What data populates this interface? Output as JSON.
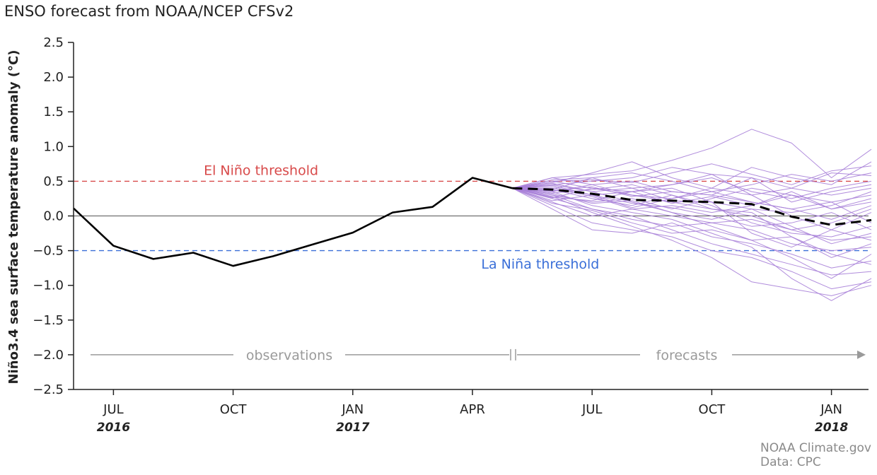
{
  "title": "ENSO forecast from NOAA/NCEP CFSv2",
  "credit": {
    "line1": "NOAA Climate.gov",
    "line2": "Data: CPC"
  },
  "colors": {
    "observed": "#000000",
    "members": "#a77fd8",
    "el_nino": "#d84a4a",
    "la_nina": "#3a6fd8",
    "zero": "#555555",
    "period": "#9a9a9a"
  },
  "chart_data": {
    "type": "line",
    "title": "ENSO forecast from NOAA/NCEP CFSv2",
    "ylabel": "Niño3.4 sea surface temperature anomaly (°C)",
    "xlabel": "",
    "ylim": [
      -2.5,
      2.5
    ],
    "yticks": [
      2.5,
      2.0,
      1.5,
      1.0,
      0.5,
      0.0,
      -0.5,
      -1.0,
      -1.5,
      -2.0,
      -2.5
    ],
    "ytick_labels": [
      "2.5",
      "2.0",
      "1.5",
      "1.0",
      "0.5",
      "0.0",
      "−0.5",
      "−1.0",
      "−1.5",
      "−2.0",
      "−2.5"
    ],
    "x_months": [
      "2016-06",
      "2016-07",
      "2016-08",
      "2016-09",
      "2016-10",
      "2016-11",
      "2016-12",
      "2017-01",
      "2017-02",
      "2017-03",
      "2017-04",
      "2017-05",
      "2017-06",
      "2017-07",
      "2017-08",
      "2017-09",
      "2017-10",
      "2017-11",
      "2017-12",
      "2018-01",
      "2018-02"
    ],
    "xticks": [
      {
        "month_index": 1,
        "label": "JUL",
        "year": "2016"
      },
      {
        "month_index": 4,
        "label": "OCT",
        "year": ""
      },
      {
        "month_index": 7,
        "label": "JAN",
        "year": "2017"
      },
      {
        "month_index": 10,
        "label": "APR",
        "year": ""
      },
      {
        "month_index": 13,
        "label": "JUL",
        "year": ""
      },
      {
        "month_index": 16,
        "label": "OCT",
        "year": ""
      },
      {
        "month_index": 19,
        "label": "JAN",
        "year": "2018"
      }
    ],
    "thresholds": [
      {
        "name": "El Niño threshold",
        "value": 0.5,
        "label_month_index": 4.7,
        "label_value": 0.65
      },
      {
        "name": "La Niña threshold",
        "value": -0.5,
        "label_month_index": 11.7,
        "label_value": -0.7
      }
    ],
    "zero_line": 0.0,
    "observed": {
      "name": "observations",
      "start_index": 0,
      "values": [
        0.11,
        -0.43,
        -0.62,
        -0.53,
        -0.72,
        -0.58,
        -0.41,
        -0.24,
        0.05,
        0.13,
        0.55,
        0.4
      ]
    },
    "forecast_mean": {
      "name": "ensemble mean",
      "start_index": 11,
      "values": [
        0.4,
        0.38,
        0.32,
        0.23,
        0.22,
        0.2,
        0.17,
        -0.01,
        -0.13,
        -0.06
      ]
    },
    "ensemble": {
      "start_index": 11,
      "members": [
        [
          0.4,
          0.55,
          0.6,
          0.65,
          0.8,
          0.98,
          1.25,
          1.05,
          0.55,
          0.96
        ],
        [
          0.4,
          0.48,
          0.62,
          0.78,
          0.55,
          0.4,
          0.7,
          0.55,
          0.45,
          0.78
        ],
        [
          0.4,
          0.45,
          0.5,
          0.55,
          0.7,
          0.6,
          0.3,
          0.4,
          0.62,
          0.58
        ],
        [
          0.4,
          0.52,
          0.55,
          0.4,
          0.45,
          0.6,
          0.55,
          0.2,
          0.35,
          0.45
        ],
        [
          0.4,
          0.35,
          0.45,
          0.5,
          0.35,
          0.3,
          0.2,
          0.1,
          0.2,
          0.3
        ],
        [
          0.4,
          0.42,
          0.3,
          0.35,
          0.4,
          0.2,
          0.1,
          0.05,
          0.15,
          0.35
        ],
        [
          0.4,
          0.3,
          0.2,
          0.25,
          0.1,
          0.25,
          0.4,
          0.3,
          0.1,
          0.2
        ],
        [
          0.4,
          0.5,
          0.4,
          0.3,
          0.2,
          0.1,
          0.0,
          -0.2,
          -0.1,
          0.1
        ],
        [
          0.4,
          0.38,
          0.25,
          0.15,
          0.3,
          0.15,
          -0.1,
          -0.25,
          -0.3,
          -0.15
        ],
        [
          0.4,
          0.2,
          0.0,
          0.1,
          0.0,
          -0.1,
          -0.05,
          -0.2,
          -0.35,
          -0.3
        ],
        [
          0.4,
          0.25,
          0.1,
          -0.05,
          -0.15,
          -0.1,
          -0.2,
          -0.4,
          -0.5,
          -0.45
        ],
        [
          0.4,
          0.1,
          -0.2,
          -0.25,
          -0.1,
          -0.3,
          -0.4,
          -0.55,
          -0.75,
          -0.65
        ],
        [
          0.4,
          0.3,
          0.1,
          0.0,
          -0.2,
          -0.4,
          -0.55,
          -0.7,
          -0.85,
          -0.8
        ],
        [
          0.4,
          0.15,
          -0.1,
          -0.2,
          -0.3,
          -0.5,
          -0.6,
          -0.8,
          -1.05,
          -0.95
        ],
        [
          0.4,
          0.35,
          0.15,
          0.05,
          -0.05,
          -0.25,
          -0.45,
          -0.9,
          -1.22,
          -0.9
        ],
        [
          0.4,
          0.28,
          0.05,
          -0.15,
          -0.35,
          -0.6,
          -0.95,
          -1.05,
          -1.15,
          -1.0
        ],
        [
          0.4,
          0.45,
          0.35,
          0.2,
          0.05,
          -0.15,
          -0.35,
          -0.6,
          -0.9,
          -0.55
        ],
        [
          0.4,
          0.33,
          0.38,
          0.45,
          0.3,
          0.1,
          0.05,
          -0.3,
          -0.6,
          -0.4
        ],
        [
          0.4,
          0.55,
          0.45,
          0.3,
          0.25,
          0.4,
          0.3,
          0.0,
          -0.2,
          0.05
        ],
        [
          0.4,
          0.38,
          0.55,
          0.62,
          0.5,
          0.35,
          0.45,
          0.6,
          0.5,
          0.62
        ],
        [
          0.4,
          0.27,
          0.22,
          0.35,
          0.45,
          0.55,
          0.35,
          0.25,
          0.4,
          0.5
        ],
        [
          0.4,
          0.4,
          0.28,
          0.1,
          0.15,
          0.05,
          0.15,
          0.3,
          0.2,
          -0.1
        ],
        [
          0.4,
          0.32,
          0.18,
          0.22,
          0.05,
          -0.05,
          0.1,
          -0.15,
          -0.4,
          -0.25
        ],
        [
          0.4,
          0.47,
          0.35,
          0.4,
          0.22,
          0.2,
          -0.25,
          -0.45,
          -0.2,
          -0.35
        ],
        [
          0.4,
          0.22,
          0.3,
          0.12,
          0.25,
          0.35,
          0.2,
          0.1,
          -0.05,
          0.15
        ],
        [
          0.4,
          0.36,
          0.42,
          0.28,
          0.35,
          0.3,
          0.55,
          0.4,
          0.3,
          0.4
        ],
        [
          0.4,
          0.5,
          0.52,
          0.48,
          0.62,
          0.75,
          0.6,
          0.45,
          0.65,
          0.72
        ],
        [
          0.4,
          0.18,
          0.08,
          -0.1,
          -0.25,
          -0.2,
          -0.35,
          -0.3,
          -0.55,
          -0.7
        ],
        [
          0.4,
          0.44,
          0.3,
          0.18,
          0.12,
          0.0,
          -0.15,
          -0.1,
          0.05,
          -0.2
        ],
        [
          0.4,
          0.26,
          0.4,
          0.35,
          0.18,
          0.28,
          0.15,
          0.35,
          0.1,
          0.25
        ]
      ]
    },
    "period_labels": {
      "observations": "observations",
      "forecasts": "forecasts"
    }
  }
}
